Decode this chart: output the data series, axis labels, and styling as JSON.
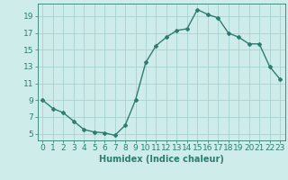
{
  "x": [
    0,
    1,
    2,
    3,
    4,
    5,
    6,
    7,
    8,
    9,
    10,
    11,
    12,
    13,
    14,
    15,
    16,
    17,
    18,
    19,
    20,
    21,
    22,
    23
  ],
  "y": [
    9,
    8,
    7.5,
    6.5,
    5.5,
    5.2,
    5.1,
    4.8,
    6,
    9,
    13.5,
    15.5,
    16.5,
    17.3,
    17.5,
    19.8,
    19.2,
    18.8,
    17,
    16.5,
    15.7,
    15.7,
    13,
    11.5
  ],
  "line_color": "#2e7d6e",
  "marker": "D",
  "marker_size": 2,
  "linewidth": 1.0,
  "bg_color": "#cdecea",
  "grid_color": "#9ecfcb",
  "xlabel": "Humidex (Indice chaleur)",
  "xlabel_fontsize": 7,
  "ylabel_ticks": [
    5,
    7,
    9,
    11,
    13,
    15,
    17,
    19
  ],
  "ylim": [
    4.2,
    20.5
  ],
  "xlim": [
    -0.5,
    23.5
  ],
  "xtick_labels": [
    "0",
    "1",
    "2",
    "3",
    "4",
    "5",
    "6",
    "7",
    "8",
    "9",
    "10",
    "11",
    "12",
    "13",
    "14",
    "15",
    "16",
    "17",
    "18",
    "19",
    "20",
    "21",
    "22",
    "23"
  ],
  "tick_fontsize": 6.5,
  "tick_color": "#2e7d6e",
  "axis_color": "#2e7d6e"
}
